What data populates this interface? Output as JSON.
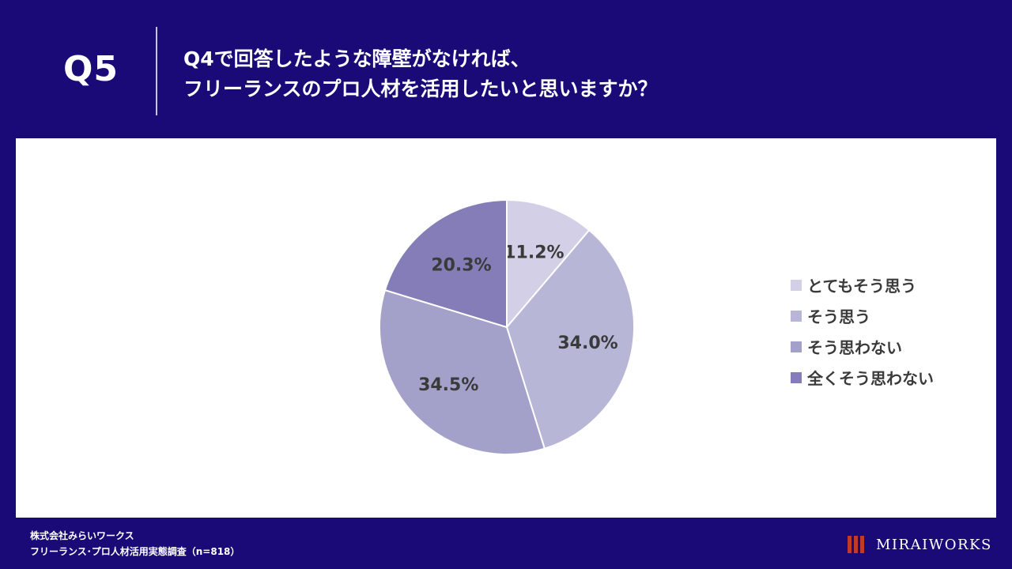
{
  "header": {
    "qnum": "Q5",
    "question_line1": "Q4で回答したような障壁がなければ、",
    "question_line2": "フリーランスのプロ人材を活用したいと思いますか？"
  },
  "chart_data": {
    "type": "pie",
    "categories": [
      "とてもそう思う",
      "そう思う",
      "そう思わない",
      "全くそう思わない"
    ],
    "values": [
      11.2,
      34.0,
      34.5,
      20.3
    ],
    "labels": [
      "11.2%",
      "34.0%",
      "34.5%",
      "20.3%"
    ],
    "colors": [
      "#d2cfe6",
      "#b8b6d6",
      "#a3a0c9",
      "#857db7"
    ],
    "legend_position": "right"
  },
  "legend": {
    "items": [
      "とてもそう思う",
      "そう思う",
      "そう思わない",
      "全くそう思わない"
    ]
  },
  "footer": {
    "company": "株式会社みらいワークス",
    "survey": "フリーランス･プロ人材活用実態調査（n=818）"
  },
  "logo": {
    "text": "MIRAIWORKS",
    "mark_color": "#c0392b"
  }
}
